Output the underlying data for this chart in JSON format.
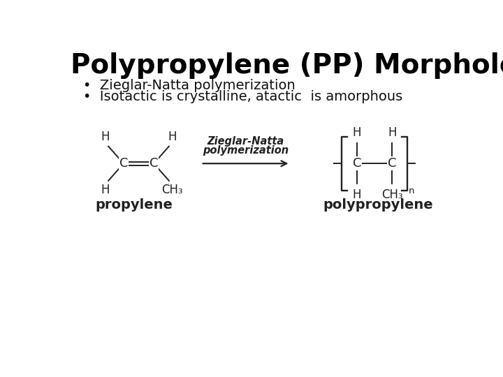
{
  "title": "Polypropylene (PP) Morphology",
  "bullet1": "Zieglar-Natta polymerization",
  "bullet2": "Isotactic is crystalline, atactic  is amorphous",
  "bg_color": "#ffffff",
  "title_color": "#000000",
  "text_color": "#111111",
  "title_fontsize": 28,
  "bullet_fontsize": 14,
  "chem_color": "#222222",
  "arrow_label_line1": "Zieglar-Natta",
  "arrow_label_line2": "polymerization",
  "propylene_label": "propylene",
  "polypropylene_label": "polypropylene",
  "chem_fontsize": 12,
  "label_fontsize": 13
}
